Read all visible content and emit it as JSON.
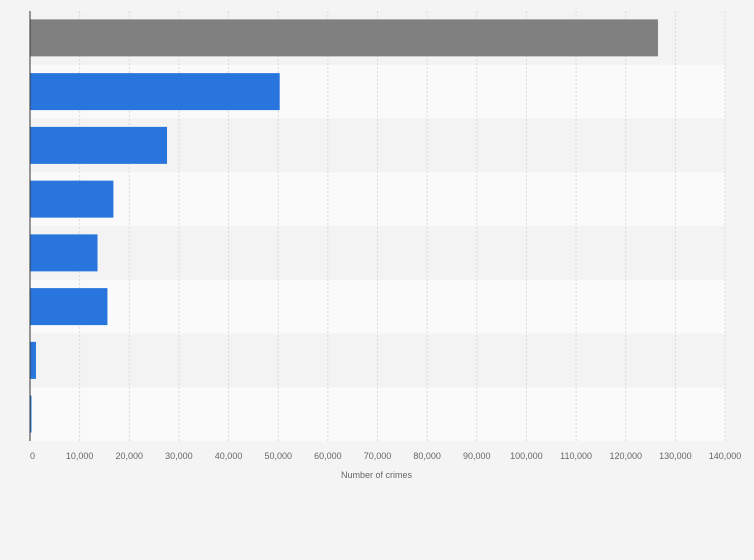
{
  "chart_data": {
    "type": "bar",
    "orientation": "horizontal",
    "title": "",
    "xlabel": "Number of crimes",
    "ylabel": "",
    "xlim": [
      0,
      140000
    ],
    "xticks": [
      0,
      10000,
      20000,
      30000,
      40000,
      50000,
      60000,
      70000,
      80000,
      90000,
      100000,
      110000,
      120000,
      130000,
      140000
    ],
    "xtick_labels": [
      "0",
      "10,000",
      "20,000",
      "30,000",
      "40,000",
      "50,000",
      "60,000",
      "70,000",
      "80,000",
      "90,000",
      "100,000",
      "110,000",
      "120,000",
      "130,000",
      "140,000"
    ],
    "categories": [
      "",
      "",
      "",
      "",
      "",
      "",
      "",
      ""
    ],
    "values": [
      126500,
      50300,
      27600,
      16800,
      13600,
      15600,
      1200,
      300
    ],
    "colors": [
      "#808080",
      "#2876dd",
      "#2876dd",
      "#2876dd",
      "#2876dd",
      "#2876dd",
      "#2876dd",
      "#2876dd"
    ],
    "grid": true,
    "legend": "none"
  }
}
